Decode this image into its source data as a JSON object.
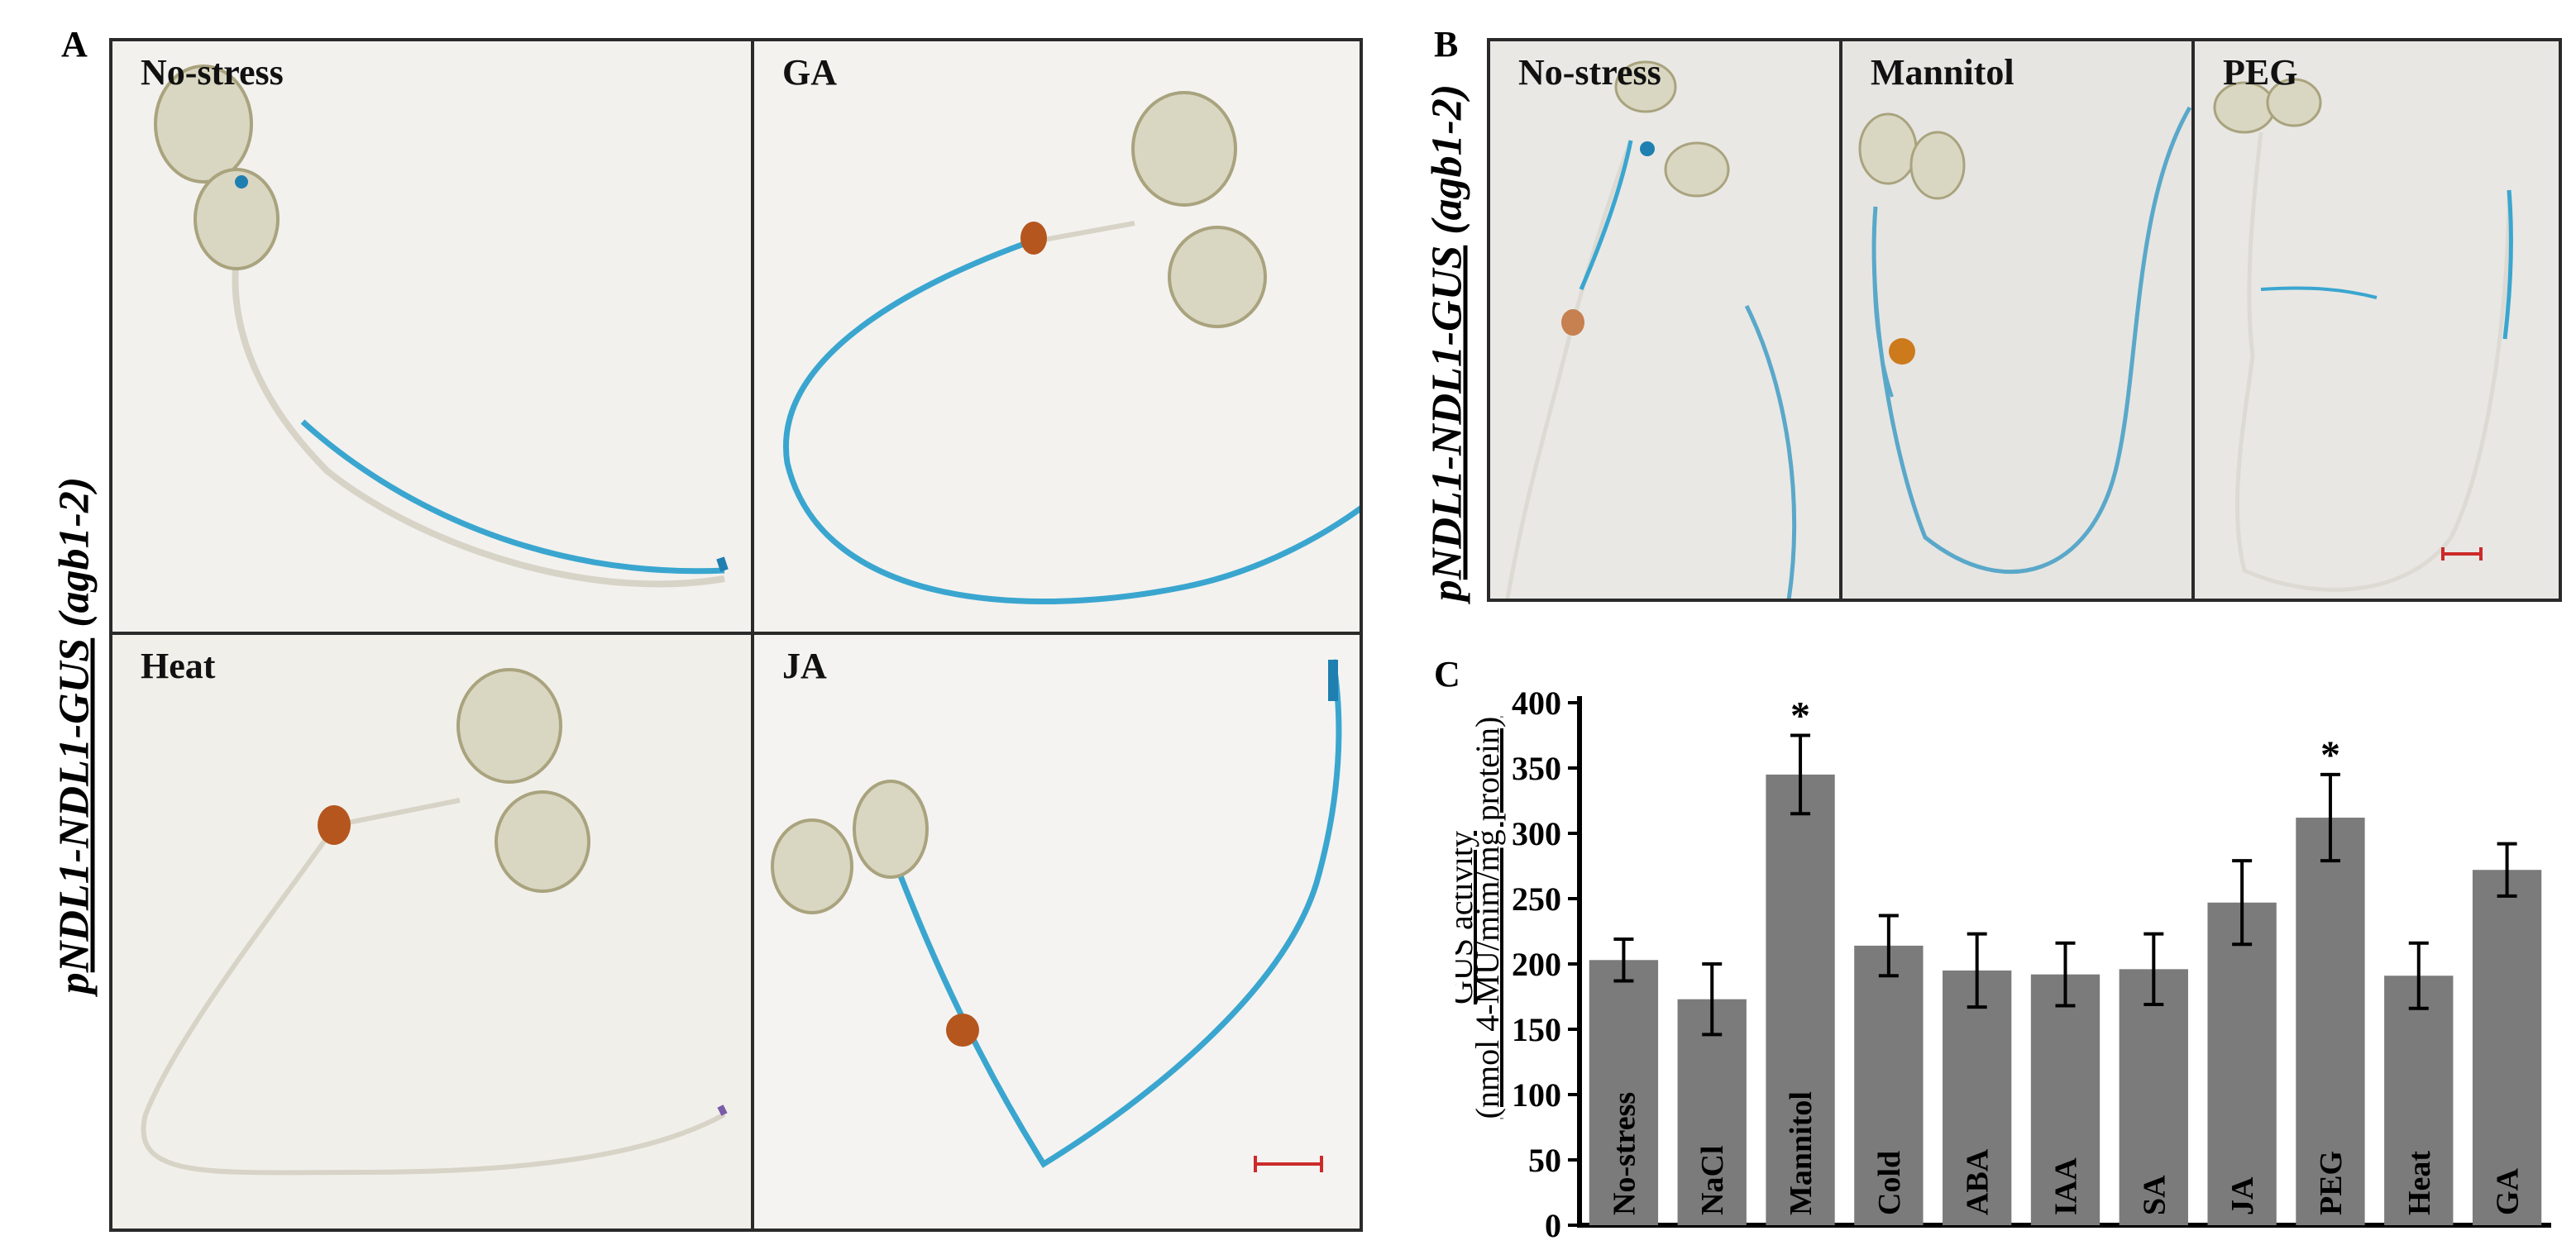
{
  "panels": {
    "A": {
      "letter": "A",
      "ylabel_prefix": "p",
      "ylabel_gene": "NDL1-NDL1-GUS",
      "ylabel_strain": "(agb1-2)",
      "tiles": [
        {
          "label": "No-stress",
          "bg": "#f2f1ee"
        },
        {
          "label": "GA",
          "bg": "#f3f2ef"
        },
        {
          "label": "Heat",
          "bg": "#f1efea"
        },
        {
          "label": "JA",
          "bg": "#f4f3f1"
        }
      ]
    },
    "B": {
      "letter": "B",
      "ylabel_prefix": "p",
      "ylabel_gene": "NDL1-NDL1-GUS",
      "ylabel_strain": "(agb1-2)",
      "tiles": [
        {
          "label": "No-stress",
          "bg": "#e9e8e5"
        },
        {
          "label": "Mannitol",
          "bg": "#e6e5e2"
        },
        {
          "label": "PEG",
          "bg": "#e8e7e4"
        }
      ]
    },
    "C": {
      "letter": "C"
    }
  },
  "colors": {
    "stain": "#3aa6cf",
    "stain_dark": "#1f7fb0",
    "seed": "#b5561e",
    "cotyledon": "#d9d6c2",
    "scale_bar": "#cc2a2a",
    "bar_fill": "#7b7b7b"
  },
  "chart_data": {
    "type": "bar",
    "ylabel_line1": "GUS activity",
    "ylabel_line2": "(nmol 4-MU/mim/mg protein)",
    "ylim": [
      0,
      400
    ],
    "yticks": [
      "0",
      "50",
      "100",
      "150",
      "200",
      "250",
      "300",
      "350",
      "400"
    ],
    "categories": [
      "No-stress",
      "NaCl",
      "Mannitol",
      "Cold",
      "ABA",
      "IAA",
      "SA",
      "JA",
      "PEG",
      "Heat",
      "GA"
    ],
    "values": [
      203,
      173,
      345,
      214,
      195,
      192,
      196,
      247,
      312,
      191,
      272
    ],
    "errors": [
      16,
      27,
      30,
      23,
      28,
      24,
      27,
      32,
      33,
      25,
      20
    ],
    "significance": [
      "",
      "",
      "*",
      "",
      "",
      "",
      "",
      "",
      "*",
      "",
      ""
    ]
  }
}
